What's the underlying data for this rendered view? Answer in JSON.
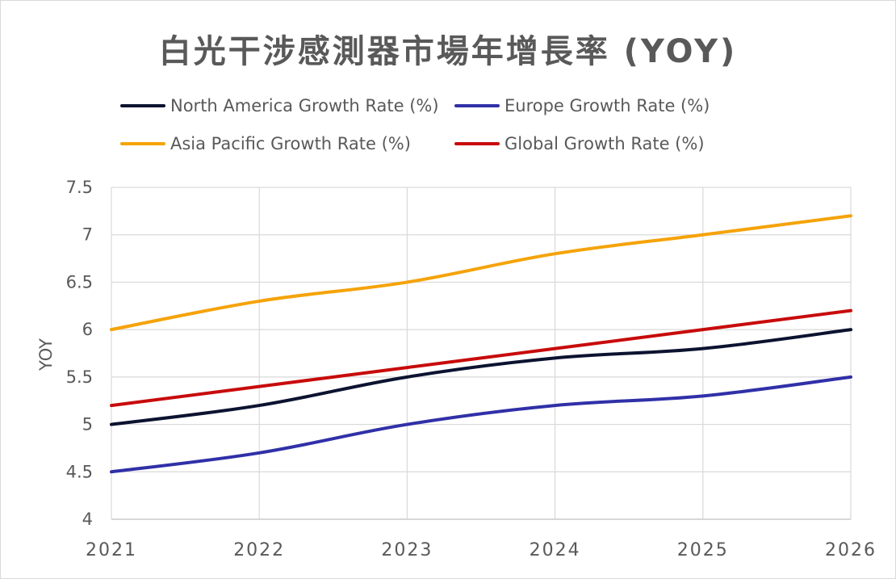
{
  "chart_data": {
    "type": "line",
    "title": "白光干涉感測器市場年增長率 (YOY)",
    "xlabel": "",
    "ylabel": "YOY",
    "categories": [
      "2021",
      "2022",
      "2023",
      "2024",
      "2025",
      "2026"
    ],
    "ylim": [
      4,
      7.5
    ],
    "yticks": [
      "4",
      "4.5",
      "5",
      "5.5",
      "6",
      "6.5",
      "7",
      "7.5"
    ],
    "grid": true,
    "legend_position": "top",
    "series": [
      {
        "name": "North America Growth Rate (%)",
        "color": "#0b1330",
        "values": [
          5.0,
          5.2,
          5.5,
          5.7,
          5.8,
          6.0
        ]
      },
      {
        "name": "Europe Growth Rate (%)",
        "color": "#3030a8",
        "values": [
          4.5,
          4.7,
          5.0,
          5.2,
          5.3,
          5.5
        ]
      },
      {
        "name": "Asia Pacific Growth Rate (%)",
        "color": "#f5a30a",
        "values": [
          6.0,
          6.3,
          6.5,
          6.8,
          7.0,
          7.2
        ]
      },
      {
        "name": "Global Growth Rate (%)",
        "color": "#c80b0b",
        "values": [
          5.2,
          5.4,
          5.6,
          5.8,
          6.0,
          6.2
        ]
      }
    ]
  }
}
